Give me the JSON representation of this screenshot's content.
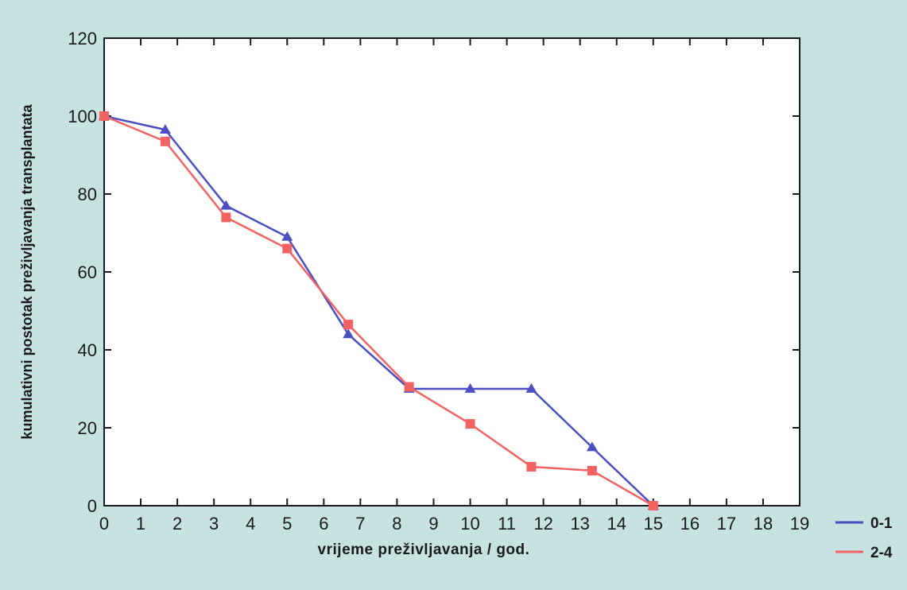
{
  "colors": {
    "background": "#c7e3e1",
    "plot_background": "#ffffff",
    "series_0_1": "#4b4fc1",
    "series_2_4": "#f26262",
    "axis": "#1a1a1a"
  },
  "chart_data": {
    "type": "line",
    "title": "",
    "xlabel": "vrijeme preživljavanja / god.",
    "ylabel": "kumulativni postotak preživljavanja transplantata",
    "xlim": [
      0,
      19
    ],
    "ylim": [
      0,
      120
    ],
    "x_ticks": [
      0,
      1,
      2,
      3,
      4,
      5,
      6,
      7,
      8,
      9,
      10,
      11,
      12,
      13,
      14,
      15,
      16,
      17,
      18,
      19
    ],
    "y_ticks": [
      0,
      20,
      40,
      60,
      80,
      100,
      120
    ],
    "grid": false,
    "legend_position": "bottom-right",
    "series": [
      {
        "name": "0-1",
        "marker": "triangle",
        "color": "#4b4fc1",
        "x": [
          0,
          1.67,
          3.33,
          5.0,
          6.67,
          8.33,
          10.0,
          11.67,
          13.33,
          15.0
        ],
        "y": [
          100,
          96.5,
          77,
          69,
          44,
          30,
          30,
          30,
          15,
          0
        ]
      },
      {
        "name": "2-4",
        "marker": "square",
        "color": "#f26262",
        "x": [
          0,
          1.67,
          3.33,
          5.0,
          6.67,
          8.33,
          10.0,
          11.67,
          13.33,
          15.0
        ],
        "y": [
          100,
          93.5,
          74,
          66,
          46.5,
          30.5,
          21,
          10,
          9,
          0
        ]
      }
    ]
  }
}
